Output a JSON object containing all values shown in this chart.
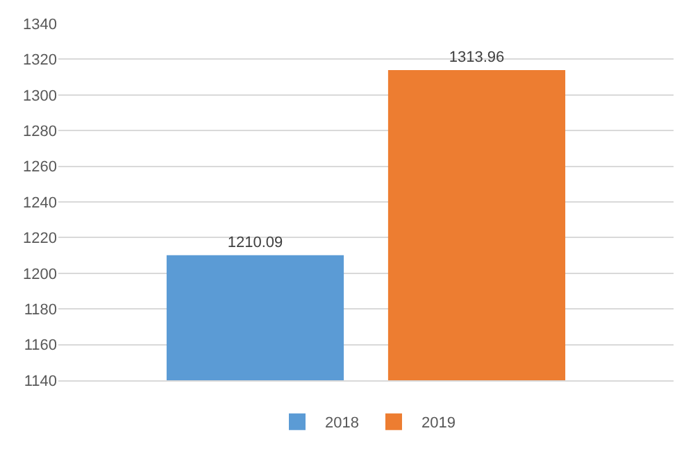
{
  "chart_data": {
    "type": "bar",
    "categories": [
      null
    ],
    "series": [
      {
        "name": "2018",
        "color": "#5b9bd5",
        "values": [
          1210.09
        ]
      },
      {
        "name": "2019",
        "color": "#ed7d31",
        "values": [
          1313.96
        ]
      }
    ],
    "ylim": [
      1140,
      1340
    ],
    "yticks": [
      1140,
      1160,
      1180,
      1200,
      1220,
      1240,
      1260,
      1280,
      1300,
      1320,
      1340
    ],
    "grid": "y",
    "legend": "bottom",
    "data_labels": true
  }
}
